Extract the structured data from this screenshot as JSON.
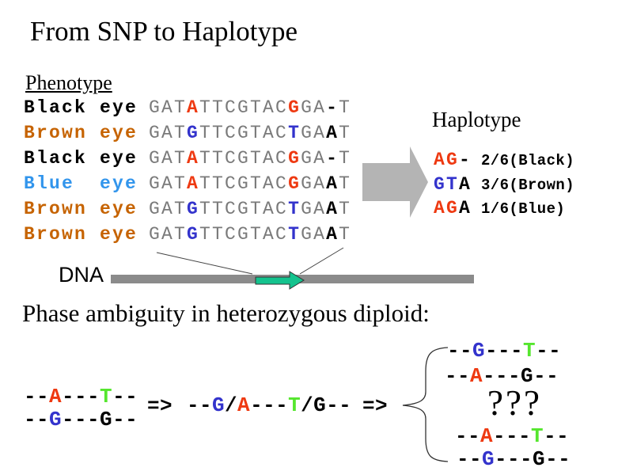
{
  "title": "From SNP to Haplotype",
  "phenotype_heading": "Phenotype",
  "dna_label": "DNA",
  "colors": {
    "black": "#000000",
    "gray": "#7A7A7A",
    "red": "#EE3911",
    "blue": "#3333CC",
    "brown": "#C66300",
    "lightblue": "#3295EC",
    "green": "#55E62E",
    "bar_gray": "#8B8B8B",
    "big_arrow_gray": "#B4B4B4",
    "marker_green": "#14C38E"
  },
  "genotype_rows": [
    {
      "phenotype": "Black eye",
      "phenotype_color": "black",
      "sequence": [
        [
          "GAT",
          "gray"
        ],
        [
          "A",
          "red"
        ],
        [
          "TTCGTAC",
          "gray"
        ],
        [
          "G",
          "red"
        ],
        [
          "GA",
          "gray"
        ],
        [
          "-",
          "black"
        ],
        [
          "T",
          "gray"
        ]
      ]
    },
    {
      "phenotype": "Brown eye",
      "phenotype_color": "brown",
      "sequence": [
        [
          "GAT",
          "gray"
        ],
        [
          "G",
          "blue"
        ],
        [
          "TTCGTAC",
          "gray"
        ],
        [
          "T",
          "blue"
        ],
        [
          "GA",
          "gray"
        ],
        [
          "A",
          "black"
        ],
        [
          "T",
          "gray"
        ]
      ]
    },
    {
      "phenotype": "Black eye",
      "phenotype_color": "black",
      "sequence": [
        [
          "GAT",
          "gray"
        ],
        [
          "A",
          "red"
        ],
        [
          "TTCGTAC",
          "gray"
        ],
        [
          "G",
          "red"
        ],
        [
          "GA",
          "gray"
        ],
        [
          "-",
          "black"
        ],
        [
          "T",
          "gray"
        ]
      ]
    },
    {
      "phenotype": "Blue  eye",
      "phenotype_color": "lightblue",
      "sequence": [
        [
          "GAT",
          "gray"
        ],
        [
          "A",
          "red"
        ],
        [
          "TTCGTAC",
          "gray"
        ],
        [
          "G",
          "red"
        ],
        [
          "GA",
          "gray"
        ],
        [
          "A",
          "black"
        ],
        [
          "T",
          "gray"
        ]
      ]
    },
    {
      "phenotype": "Brown eye",
      "phenotype_color": "brown",
      "sequence": [
        [
          "GAT",
          "gray"
        ],
        [
          "G",
          "blue"
        ],
        [
          "TTCGTAC",
          "gray"
        ],
        [
          "T",
          "blue"
        ],
        [
          "GA",
          "gray"
        ],
        [
          "A",
          "black"
        ],
        [
          "T",
          "gray"
        ]
      ]
    },
    {
      "phenotype": "Brown eye",
      "phenotype_color": "brown",
      "sequence": [
        [
          "GAT",
          "gray"
        ],
        [
          "G",
          "blue"
        ],
        [
          "TTCGTAC",
          "gray"
        ],
        [
          "T",
          "blue"
        ],
        [
          "GA",
          "gray"
        ],
        [
          "A",
          "black"
        ],
        [
          "T",
          "gray"
        ]
      ]
    }
  ],
  "haplotype": {
    "heading": "Haplotype",
    "entries": [
      {
        "alleles": [
          [
            "AG",
            "red"
          ],
          [
            "-",
            "black"
          ]
        ],
        "frequency": "2/6(Black)"
      },
      {
        "alleles": [
          [
            "GT",
            "blue"
          ],
          [
            "A",
            "black"
          ]
        ],
        "frequency": "3/6(Brown)"
      },
      {
        "alleles": [
          [
            "AG",
            "red"
          ],
          [
            "A",
            "black"
          ]
        ],
        "frequency": "1/6(Blue)"
      }
    ]
  },
  "phase": {
    "heading": "Phase ambiguity in heterozygous diploid:",
    "arrow": "=>",
    "chromosome_pair": [
      [
        [
          "--",
          "black"
        ],
        [
          "A",
          "red"
        ],
        [
          "---",
          "black"
        ],
        [
          "T",
          "green"
        ],
        [
          "--",
          "black"
        ]
      ],
      [
        [
          "--",
          "black"
        ],
        [
          "G",
          "blue"
        ],
        [
          "---",
          "black"
        ],
        [
          "G",
          "black"
        ],
        [
          "--",
          "black"
        ]
      ]
    ],
    "genotype": [
      [
        "--",
        "black"
      ],
      [
        "G",
        "blue"
      ],
      [
        "/",
        "black"
      ],
      [
        "A",
        "red"
      ],
      [
        "---",
        "black"
      ],
      [
        "T",
        "green"
      ],
      [
        "/",
        "black"
      ],
      [
        "G",
        "black"
      ],
      [
        "--",
        "black"
      ]
    ],
    "possible_rows": [
      [
        [
          "--",
          "black"
        ],
        [
          "G",
          "blue"
        ],
        [
          "---",
          "black"
        ],
        [
          "T",
          "green"
        ],
        [
          "--",
          "black"
        ]
      ],
      [
        [
          "--",
          "black"
        ],
        [
          "A",
          "red"
        ],
        [
          "---",
          "black"
        ],
        [
          "G",
          "black"
        ],
        [
          "--",
          "black"
        ]
      ],
      [
        [
          "--",
          "black"
        ],
        [
          "A",
          "red"
        ],
        [
          "---",
          "black"
        ],
        [
          "T",
          "green"
        ],
        [
          "--",
          "black"
        ]
      ],
      [
        [
          "--",
          "black"
        ],
        [
          "G",
          "blue"
        ],
        [
          "---",
          "black"
        ],
        [
          "G",
          "black"
        ],
        [
          "--",
          "black"
        ]
      ]
    ],
    "unknown": "???"
  }
}
